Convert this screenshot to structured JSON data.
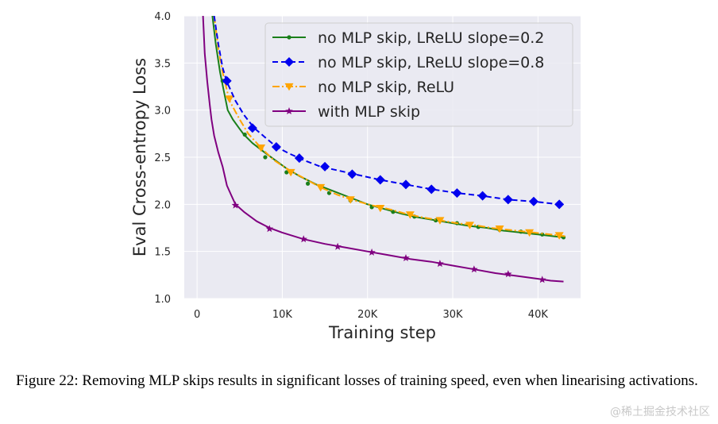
{
  "chart_data": {
    "type": "line",
    "title": "",
    "xlabel": "Training step",
    "ylabel": "Eval Cross-entropy Loss",
    "xlim": [
      -1500,
      45000
    ],
    "ylim": [
      1.0,
      4.0
    ],
    "x_ticks": [
      0,
      10000,
      20000,
      30000,
      40000
    ],
    "x_tick_labels": [
      "0",
      "10K",
      "20K",
      "30K",
      "40K"
    ],
    "y_ticks": [
      1.0,
      1.5,
      2.0,
      2.5,
      3.0,
      3.5,
      4.0
    ],
    "y_tick_labels": [
      "1.0",
      "1.5",
      "2.0",
      "2.5",
      "3.0",
      "3.5",
      "4.0"
    ],
    "grid": true,
    "legend_position": "top-right",
    "series": [
      {
        "name": "no MLP skip, LReLU slope=0.2",
        "color": "#1a7f1a",
        "dash": "solid",
        "marker": "dot",
        "curve": [
          [
            1800,
            4.0
          ],
          [
            2200,
            3.7
          ],
          [
            2700,
            3.4
          ],
          [
            3100,
            3.22
          ],
          [
            3600,
            3.0
          ],
          [
            4200,
            2.9
          ],
          [
            5000,
            2.8
          ],
          [
            5500,
            2.74
          ],
          [
            6500,
            2.65
          ],
          [
            7800,
            2.56
          ],
          [
            9000,
            2.48
          ],
          [
            10500,
            2.38
          ],
          [
            12000,
            2.3
          ],
          [
            14000,
            2.21
          ],
          [
            16000,
            2.14
          ],
          [
            18000,
            2.07
          ],
          [
            20000,
            2.0
          ],
          [
            22000,
            1.95
          ],
          [
            24000,
            1.9
          ],
          [
            26000,
            1.86
          ],
          [
            28000,
            1.83
          ],
          [
            30000,
            1.8
          ],
          [
            32000,
            1.77
          ],
          [
            34000,
            1.75
          ],
          [
            36000,
            1.72
          ],
          [
            38000,
            1.7
          ],
          [
            40000,
            1.68
          ],
          [
            42000,
            1.66
          ],
          [
            43000,
            1.65
          ]
        ],
        "marker_points": [
          [
            3000,
            3.31
          ],
          [
            5600,
            2.74
          ],
          [
            8000,
            2.5
          ],
          [
            10500,
            2.34
          ],
          [
            13000,
            2.22
          ],
          [
            15500,
            2.12
          ],
          [
            18000,
            2.04
          ],
          [
            20500,
            1.97
          ],
          [
            23000,
            1.92
          ],
          [
            25500,
            1.87
          ],
          [
            28000,
            1.83
          ],
          [
            30500,
            1.8
          ],
          [
            33000,
            1.76
          ],
          [
            35500,
            1.73
          ],
          [
            38000,
            1.71
          ],
          [
            40500,
            1.68
          ],
          [
            43000,
            1.65
          ]
        ]
      },
      {
        "name": "no MLP skip, LReLU slope=0.8",
        "color": "#0000ee",
        "dash": "dashed",
        "marker": "diamond",
        "curve": [
          [
            2000,
            4.0
          ],
          [
            2500,
            3.7
          ],
          [
            3000,
            3.45
          ],
          [
            3500,
            3.3
          ],
          [
            4500,
            3.1
          ],
          [
            5500,
            2.95
          ],
          [
            6700,
            2.81
          ],
          [
            8000,
            2.71
          ],
          [
            9300,
            2.61
          ],
          [
            10800,
            2.54
          ],
          [
            12500,
            2.47
          ],
          [
            14500,
            2.4
          ],
          [
            16500,
            2.36
          ],
          [
            18500,
            2.32
          ],
          [
            21500,
            2.26
          ],
          [
            24500,
            2.21
          ],
          [
            27500,
            2.16
          ],
          [
            30500,
            2.12
          ],
          [
            33500,
            2.09
          ],
          [
            36500,
            2.05
          ],
          [
            39500,
            2.03
          ],
          [
            42500,
            2.0
          ]
        ],
        "marker_points": [
          [
            3500,
            3.31
          ],
          [
            6500,
            2.81
          ],
          [
            9300,
            2.61
          ],
          [
            12000,
            2.49
          ],
          [
            15000,
            2.4
          ],
          [
            18200,
            2.32
          ],
          [
            21500,
            2.26
          ],
          [
            24500,
            2.21
          ],
          [
            27500,
            2.16
          ],
          [
            30500,
            2.12
          ],
          [
            33500,
            2.09
          ],
          [
            36500,
            2.05
          ],
          [
            39500,
            2.03
          ],
          [
            42500,
            2.0
          ]
        ]
      },
      {
        "name": "no MLP skip, ReLU",
        "color": "#ffa500",
        "dash": "dashdot",
        "marker": "triangle-down",
        "curve": [
          [
            2000,
            4.0
          ],
          [
            2500,
            3.65
          ],
          [
            3000,
            3.4
          ],
          [
            3800,
            3.1
          ],
          [
            5000,
            2.9
          ],
          [
            6000,
            2.75
          ],
          [
            7500,
            2.6
          ],
          [
            9000,
            2.47
          ],
          [
            10500,
            2.38
          ],
          [
            12500,
            2.28
          ],
          [
            14500,
            2.18
          ],
          [
            16500,
            2.1
          ],
          [
            18500,
            2.04
          ],
          [
            20500,
            1.99
          ],
          [
            22500,
            1.95
          ],
          [
            24500,
            1.9
          ],
          [
            26500,
            1.86
          ],
          [
            28500,
            1.83
          ],
          [
            30500,
            1.8
          ],
          [
            32500,
            1.78
          ],
          [
            34500,
            1.75
          ],
          [
            36500,
            1.73
          ],
          [
            38500,
            1.71
          ],
          [
            40500,
            1.69
          ],
          [
            42500,
            1.67
          ],
          [
            43200,
            1.66
          ]
        ],
        "marker_points": [
          [
            3800,
            3.12
          ],
          [
            7500,
            2.6
          ],
          [
            11000,
            2.34
          ],
          [
            14500,
            2.18
          ],
          [
            18000,
            2.05
          ],
          [
            21500,
            1.96
          ],
          [
            25000,
            1.89
          ],
          [
            28500,
            1.83
          ],
          [
            32000,
            1.78
          ],
          [
            35500,
            1.74
          ],
          [
            39000,
            1.7
          ],
          [
            42500,
            1.67
          ]
        ]
      },
      {
        "name": "with MLP skip",
        "color": "#800080",
        "dash": "solid",
        "marker": "star",
        "curve": [
          [
            700,
            4.0
          ],
          [
            900,
            3.6
          ],
          [
            1200,
            3.3
          ],
          [
            1500,
            3.05
          ],
          [
            1700,
            2.9
          ],
          [
            2000,
            2.73
          ],
          [
            2500,
            2.55
          ],
          [
            3000,
            2.4
          ],
          [
            3500,
            2.2
          ],
          [
            4000,
            2.1
          ],
          [
            4500,
            2.0
          ],
          [
            5500,
            1.92
          ],
          [
            7000,
            1.82
          ],
          [
            8500,
            1.75
          ],
          [
            10000,
            1.7
          ],
          [
            12500,
            1.63
          ],
          [
            15000,
            1.58
          ],
          [
            17500,
            1.54
          ],
          [
            20000,
            1.5
          ],
          [
            22500,
            1.46
          ],
          [
            25000,
            1.42
          ],
          [
            27500,
            1.39
          ],
          [
            30000,
            1.35
          ],
          [
            32500,
            1.31
          ],
          [
            35000,
            1.27
          ],
          [
            37500,
            1.24
          ],
          [
            40000,
            1.21
          ],
          [
            41500,
            1.19
          ],
          [
            43000,
            1.18
          ]
        ],
        "marker_points": [
          [
            4500,
            1.99
          ],
          [
            8500,
            1.74
          ],
          [
            12500,
            1.63
          ],
          [
            16500,
            1.55
          ],
          [
            20500,
            1.49
          ],
          [
            24500,
            1.43
          ],
          [
            28500,
            1.37
          ],
          [
            32500,
            1.31
          ],
          [
            36500,
            1.26
          ],
          [
            40500,
            1.2
          ]
        ]
      }
    ]
  },
  "caption": "Figure 22: Removing MLP skips results in significant losses of training speed, even when linearising activations.",
  "watermark": "@稀土掘金技术社区"
}
